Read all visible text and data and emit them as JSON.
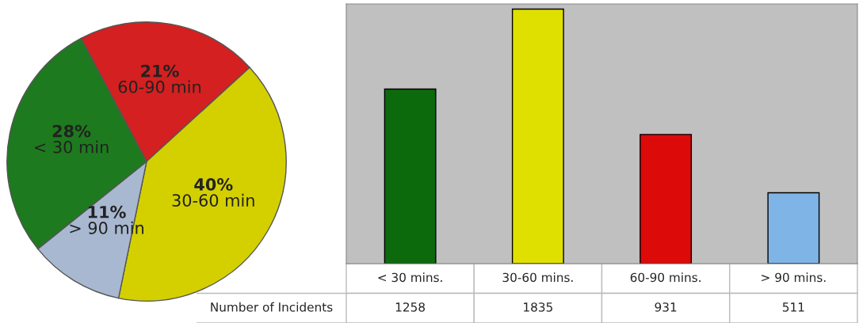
{
  "chart_data": [
    {
      "type": "pie",
      "categories": [
        "60-90 min",
        "30-60 min",
        "> 90 min",
        "< 30 min"
      ],
      "values": [
        21,
        40,
        11,
        28
      ],
      "colors": [
        "#d42020",
        "#d4d000",
        "#a8b8d0",
        "#1e7a1e"
      ],
      "value_labels": [
        "21%",
        "40%",
        "11%",
        "28%"
      ]
    },
    {
      "type": "bar",
      "categories": [
        "< 30 mins.",
        "30-60 mins.",
        "60-90 mins.",
        "> 90 mins."
      ],
      "values": [
        1258,
        1835,
        931,
        511
      ],
      "colors": [
        "#0c6a0c",
        "#e0e000",
        "#dd0a0a",
        "#7fb4e6"
      ],
      "data_labels": true,
      "annotations": [
        "Number of Incidents"
      ]
    }
  ]
}
